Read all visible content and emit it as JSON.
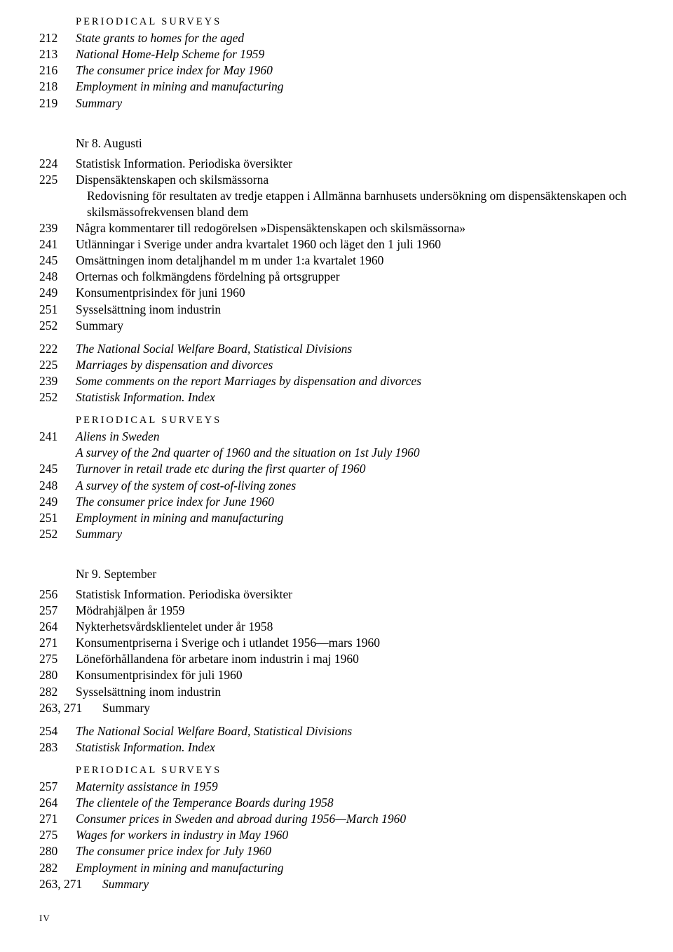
{
  "labels": {
    "periodical_surveys": "PERIODICAL SURVEYS",
    "page_marker": "IV"
  },
  "block1": [
    {
      "pg": "212",
      "text": "State grants to homes for the aged",
      "italic": true
    },
    {
      "pg": "213",
      "text": "National Home-Help Scheme for 1959",
      "italic": true
    },
    {
      "pg": "216",
      "text": "The consumer price index for May 1960",
      "italic": true
    },
    {
      "pg": "218",
      "text": "Employment in mining and manufacturing",
      "italic": true
    },
    {
      "pg": "219",
      "text": "Summary",
      "italic": true
    }
  ],
  "nr8": {
    "heading": "Nr 8.   Augusti",
    "entries_a": [
      {
        "pg": "224",
        "text": "Statistisk Information.  Periodiska översikter"
      },
      {
        "pg": "225",
        "text": "Dispensäktenskapen och skilsmässorna"
      },
      {
        "pg": "",
        "text": "Redovisning för resultaten av tredje etappen i Allmänna barnhusets undersökning om dispensäktenskapen och skilsmässofrekvensen bland dem",
        "cont": true
      },
      {
        "pg": "239",
        "text": "Några kommentarer till redogörelsen »Dispensäktenskapen och skilsmässorna»"
      },
      {
        "pg": "241",
        "text": "Utlänningar i Sverige under andra kvartalet 1960 och läget den 1 juli 1960"
      },
      {
        "pg": "245",
        "text": "Omsättningen inom detaljhandel m m under 1:a kvartalet 1960"
      },
      {
        "pg": "248",
        "text": "Orternas och folkmängdens fördelning på ortsgrupper"
      },
      {
        "pg": "249",
        "text": "Konsumentprisindex för juni 1960"
      },
      {
        "pg": "251",
        "text": "Sysselsättning inom industrin"
      },
      {
        "pg": "252",
        "text": "Summary"
      }
    ],
    "entries_b": [
      {
        "pg": "222",
        "text": "The National Social Welfare Board, Statistical Divisions",
        "italic": true
      },
      {
        "pg": "225",
        "text": "Marriages by dispensation and divorces",
        "italic": true
      },
      {
        "pg": "239",
        "text": "Some comments on the report Marriages by dispensation and divorces",
        "italic": true
      },
      {
        "pg": "252",
        "text": "Statistisk Information. Index",
        "italic": true
      }
    ],
    "entries_c": [
      {
        "pg": "241",
        "text": "Aliens in Sweden",
        "italic": true
      },
      {
        "pg": "",
        "text": "A survey of the 2nd quarter of 1960 and the situation on 1st July 1960",
        "italic": true
      },
      {
        "pg": "245",
        "text": "Turnover in retail trade etc during the first quarter of 1960",
        "italic": true
      },
      {
        "pg": "248",
        "text": "A survey of the system of cost-of-living zones",
        "italic": true
      },
      {
        "pg": "249",
        "text": "The consumer price index for June 1960",
        "italic": true
      },
      {
        "pg": "251",
        "text": "Employment in mining and manufacturing",
        "italic": true
      },
      {
        "pg": "252",
        "text": "Summary",
        "italic": true
      }
    ]
  },
  "nr9": {
    "heading": "Nr 9.   September",
    "entries_a": [
      {
        "pg": "256",
        "text": "Statistisk Information.  Periodiska översikter"
      },
      {
        "pg": "257",
        "text": "Mödrahjälpen år 1959"
      },
      {
        "pg": "264",
        "text": "Nykterhetsvårdsklientelet under år 1958"
      },
      {
        "pg": "271",
        "text": "Konsumentpriserna i Sverige och i utlandet 1956—mars 1960"
      },
      {
        "pg": "275",
        "text": "Löneförhållandena för arbetare inom industrin i maj 1960"
      },
      {
        "pg": "280",
        "text": "Konsumentprisindex för juli 1960"
      },
      {
        "pg": "282",
        "text": "Sysselsättning inom industrin"
      },
      {
        "pg": "263, 271",
        "text": "Summary",
        "wide": true
      }
    ],
    "entries_b": [
      {
        "pg": "254",
        "text": "The National Social Welfare Board, Statistical Divisions",
        "italic": true
      },
      {
        "pg": "283",
        "text": "Statistisk Information. Index",
        "italic": true
      }
    ],
    "entries_c": [
      {
        "pg": "257",
        "text": "Maternity assistance in 1959",
        "italic": true
      },
      {
        "pg": "264",
        "text": "The clientele of the Temperance Boards during 1958",
        "italic": true
      },
      {
        "pg": "271",
        "text": "Consumer prices in Sweden and abroad during 1956—March 1960",
        "italic": true
      },
      {
        "pg": "275",
        "text": "Wages for workers in industry in May 1960",
        "italic": true
      },
      {
        "pg": "280",
        "text": "The consumer price index for July 1960",
        "italic": true
      },
      {
        "pg": "282",
        "text": "Employment in mining and manufacturing",
        "italic": true
      },
      {
        "pg": "263, 271",
        "text": "Summary",
        "italic": true,
        "wide": true
      }
    ]
  }
}
